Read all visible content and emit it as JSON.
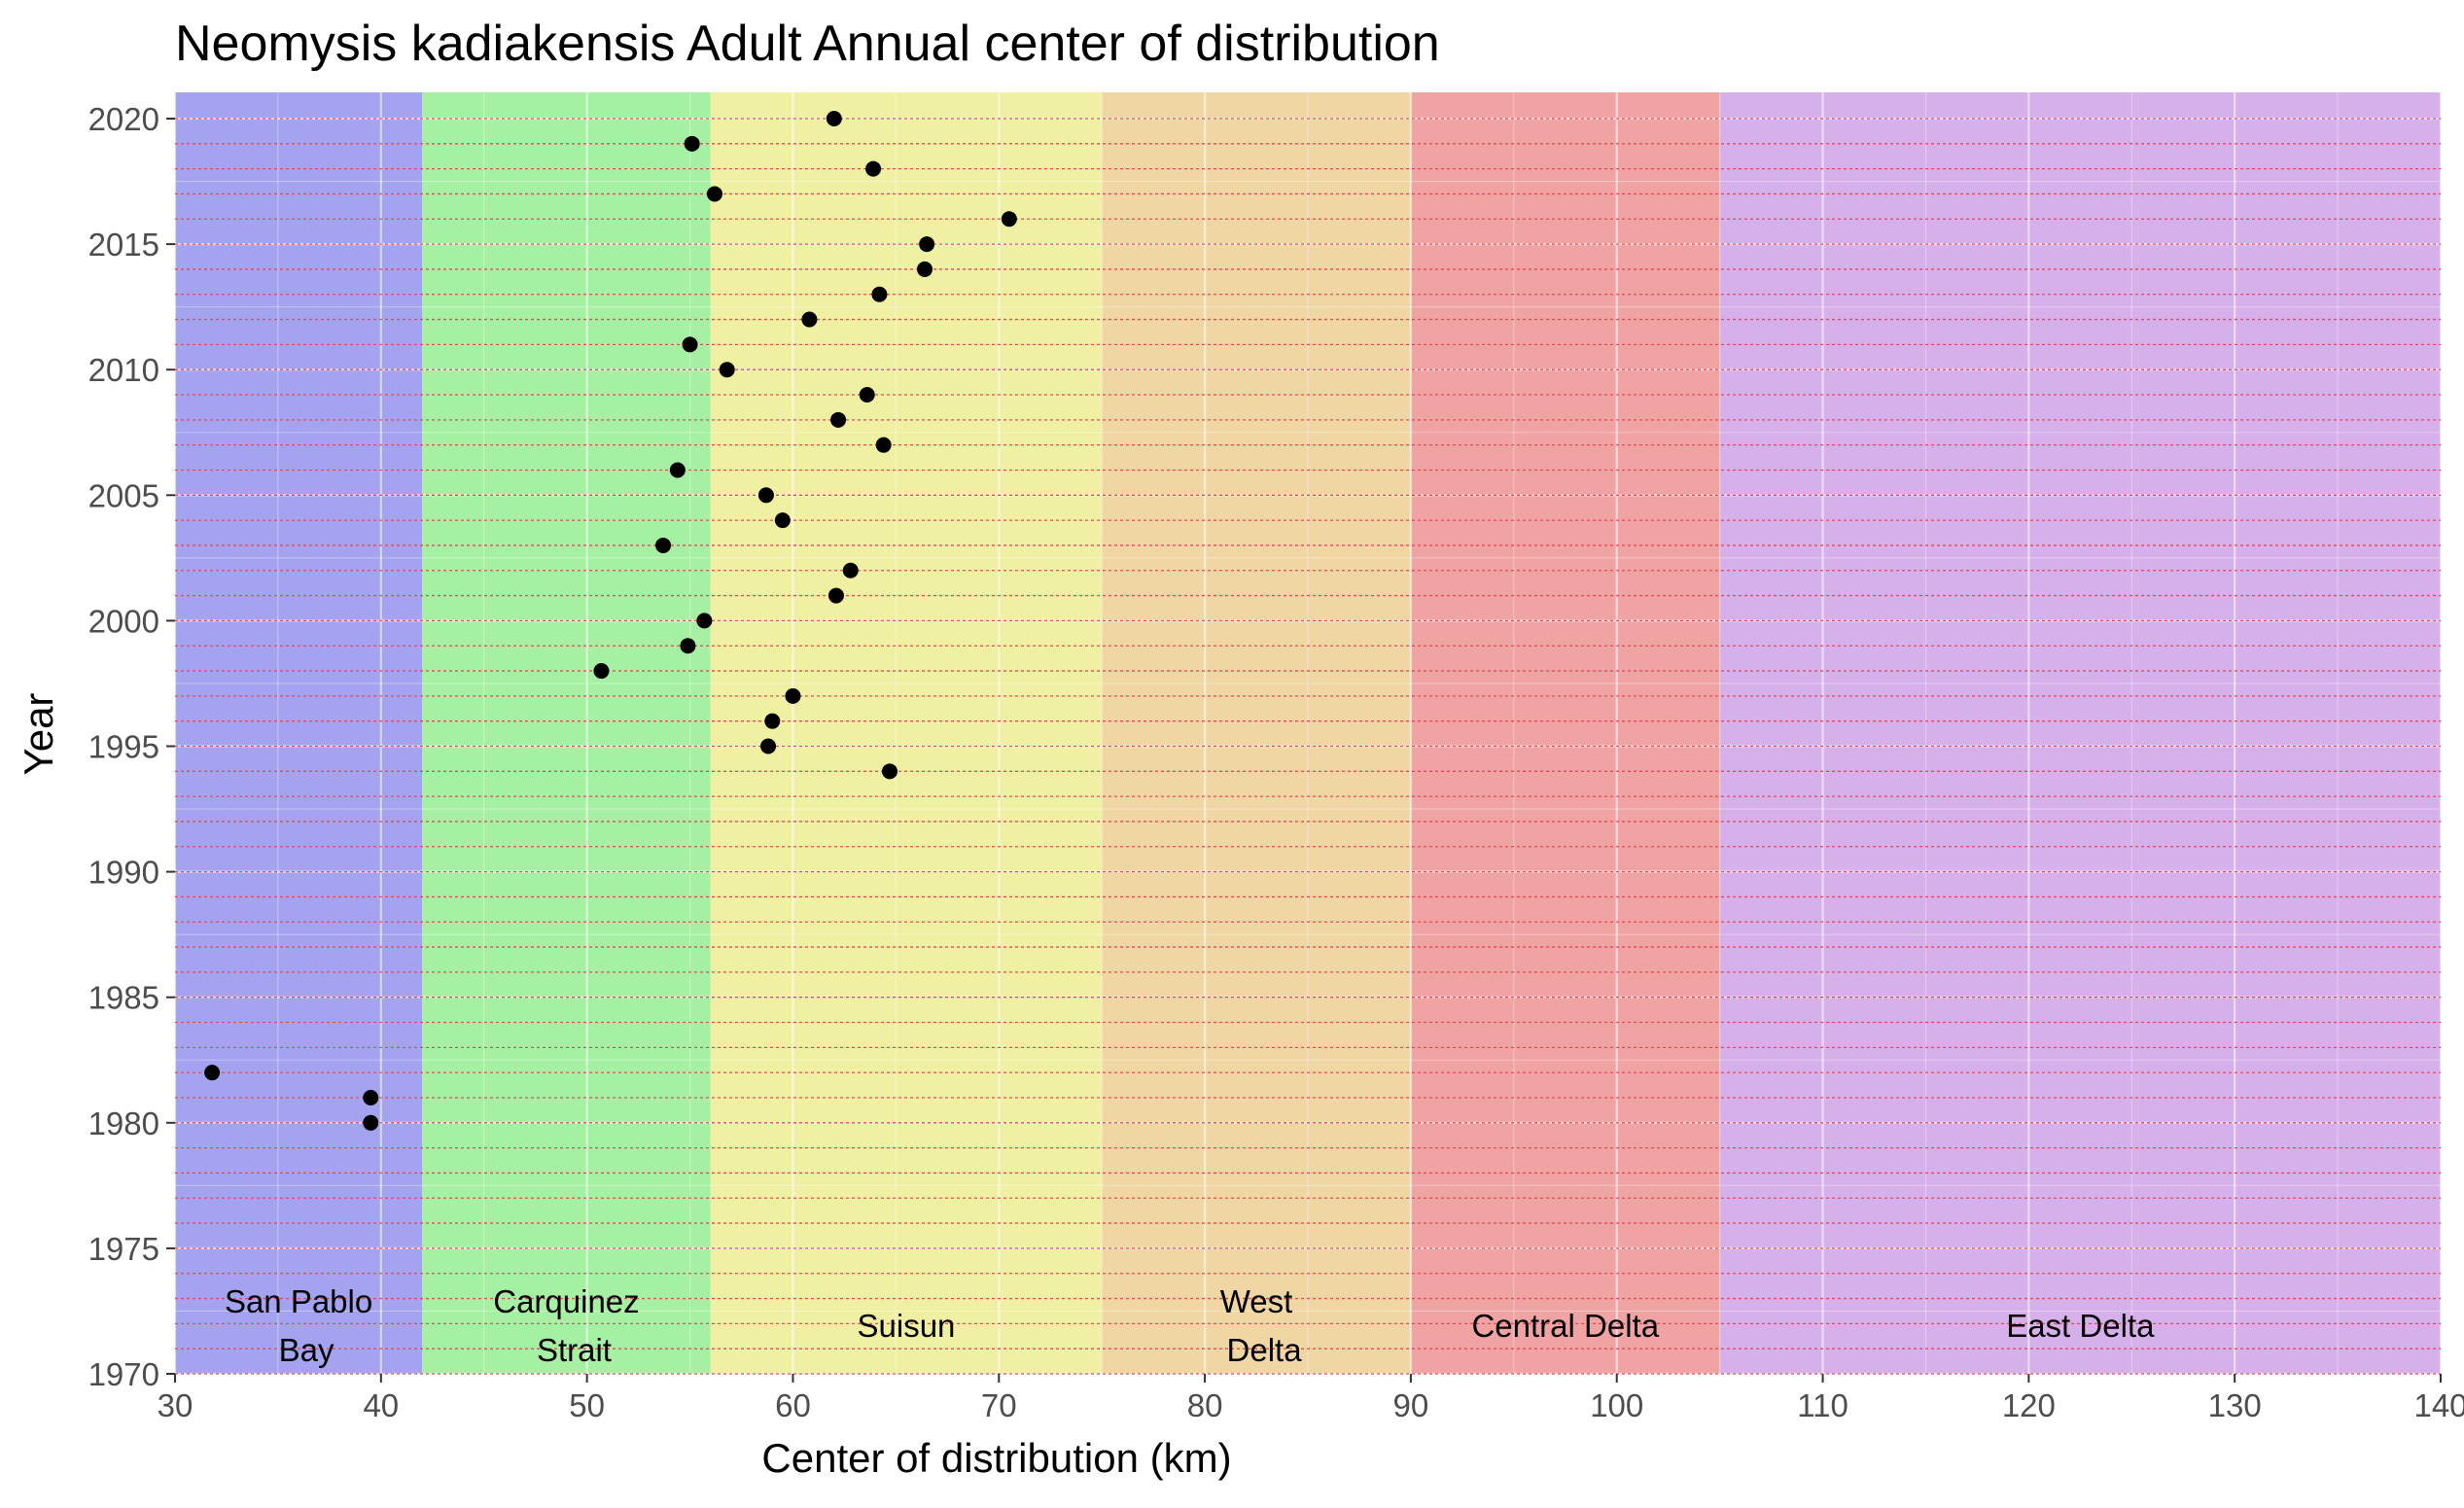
{
  "chart_data": {
    "type": "scatter",
    "title": "Neomysis kadiakensis Adult Annual center of distribution",
    "xlabel": "Center of distribution (km)",
    "ylabel": "Year",
    "xlim": [
      30,
      140
    ],
    "ylim": [
      1970,
      2020
    ],
    "x_ticks": [
      "30",
      "40",
      "50",
      "60",
      "70",
      "80",
      "90",
      "100",
      "110",
      "120",
      "130",
      "140"
    ],
    "y_ticks": [
      "1970",
      "1975",
      "1980",
      "1985",
      "1990",
      "1995",
      "2000",
      "2005",
      "2010",
      "2015",
      "2020"
    ],
    "grid": true,
    "year_reference_lines": "dashed red line at every year",
    "regions": [
      {
        "name": "San Pablo Bay",
        "lines": [
          "San Pablo",
          "Bay"
        ],
        "x_start": 30,
        "x_end": 42,
        "color": "#a3a3f0"
      },
      {
        "name": "Carquinez Strait",
        "lines": [
          "Carquinez",
          "Strait"
        ],
        "x_start": 42,
        "x_end": 56,
        "color": "#a6f0a3"
      },
      {
        "name": "Suisun",
        "lines": [
          "Suisun"
        ],
        "x_start": 56,
        "x_end": 75,
        "color": "#f0f0a3"
      },
      {
        "name": "West Delta",
        "lines": [
          "West",
          "Delta"
        ],
        "x_start": 75,
        "x_end": 90,
        "color": "#f0d6a3"
      },
      {
        "name": "Central Delta",
        "lines": [
          "Central Delta"
        ],
        "x_start": 90,
        "x_end": 105,
        "color": "#f0a3a3"
      },
      {
        "name": "East Delta",
        "lines": [
          "East Delta"
        ],
        "x_start": 105,
        "x_end": 140,
        "color": "#d6b0ea"
      }
    ],
    "points": [
      {
        "x": 31.8,
        "y": 1982
      },
      {
        "x": 39.5,
        "y": 1981
      },
      {
        "x": 39.5,
        "y": 1980
      },
      {
        "x": 64.7,
        "y": 1994
      },
      {
        "x": 58.8,
        "y": 1995
      },
      {
        "x": 59.0,
        "y": 1996
      },
      {
        "x": 60.0,
        "y": 1997
      },
      {
        "x": 50.7,
        "y": 1998
      },
      {
        "x": 54.9,
        "y": 1999
      },
      {
        "x": 55.7,
        "y": 2000
      },
      {
        "x": 62.1,
        "y": 2001
      },
      {
        "x": 62.8,
        "y": 2002
      },
      {
        "x": 53.7,
        "y": 2003
      },
      {
        "x": 59.5,
        "y": 2004
      },
      {
        "x": 58.7,
        "y": 2005
      },
      {
        "x": 54.4,
        "y": 2006
      },
      {
        "x": 64.4,
        "y": 2007
      },
      {
        "x": 62.2,
        "y": 2008
      },
      {
        "x": 63.6,
        "y": 2009
      },
      {
        "x": 56.8,
        "y": 2010
      },
      {
        "x": 55.0,
        "y": 2011
      },
      {
        "x": 60.8,
        "y": 2012
      },
      {
        "x": 64.2,
        "y": 2013
      },
      {
        "x": 66.4,
        "y": 2014
      },
      {
        "x": 66.5,
        "y": 2015
      },
      {
        "x": 70.5,
        "y": 2016
      },
      {
        "x": 56.2,
        "y": 2017
      },
      {
        "x": 63.9,
        "y": 2018
      },
      {
        "x": 55.1,
        "y": 2019
      },
      {
        "x": 62.0,
        "y": 2020
      }
    ],
    "colors": {
      "point": "#000000",
      "year_line": "#e8485a",
      "grid": "#ffffff",
      "tick_label": "#4d4d4d"
    }
  }
}
